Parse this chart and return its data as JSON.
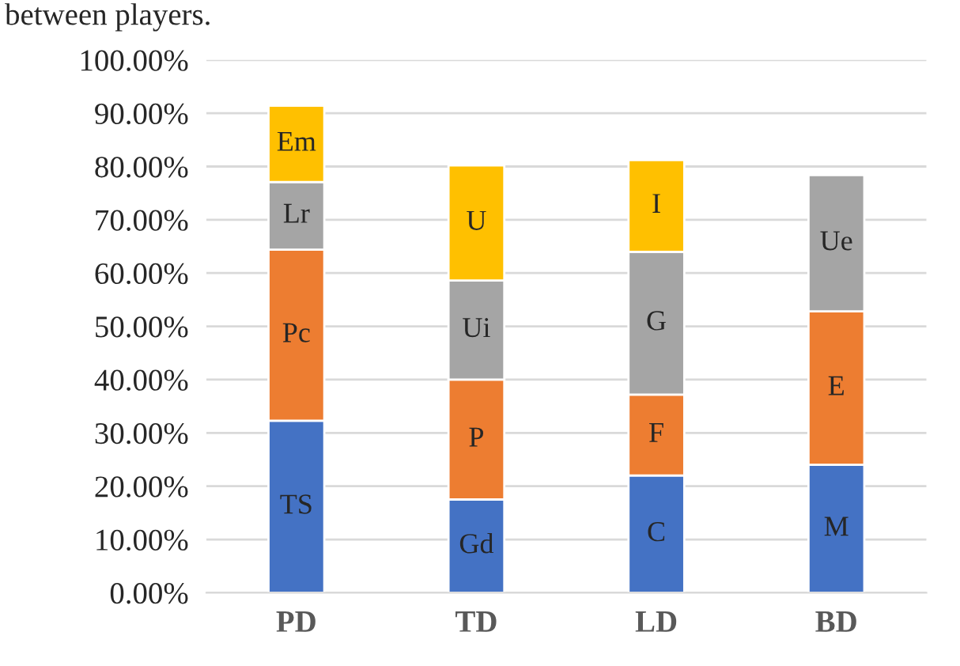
{
  "chart_data": {
    "type": "bar",
    "stacked": true,
    "categories": [
      "PD",
      "TD",
      "LD",
      "BD"
    ],
    "series": [
      {
        "color": "#4472c4",
        "values": [
          32.3,
          17.5,
          22.0,
          24.0
        ],
        "value_labels": [
          "TS",
          "Gd",
          "C",
          "M"
        ]
      },
      {
        "color": "#ed7d31",
        "values": [
          32.1,
          22.5,
          15.2,
          28.8
        ],
        "value_labels": [
          "Pc",
          "P",
          "F",
          "E"
        ]
      },
      {
        "color": "#a5a5a5",
        "values": [
          12.7,
          18.6,
          26.8,
          25.6
        ],
        "value_labels": [
          "Lr",
          "Ui",
          "G",
          "Ue"
        ]
      },
      {
        "color": "#ffc000",
        "values": [
          14.3,
          21.6,
          17.2,
          null
        ],
        "value_labels": [
          "Em",
          "U",
          "I",
          null
        ]
      }
    ],
    "ylim": [
      0,
      100
    ],
    "yticks": [
      {
        "value": 0,
        "label": "0.00%"
      },
      {
        "value": 10,
        "label": "10.00%"
      },
      {
        "value": 20,
        "label": "20.00%"
      },
      {
        "value": 30,
        "label": "30.00%"
      },
      {
        "value": 40,
        "label": "40.00%"
      },
      {
        "value": 50,
        "label": "50.00%"
      },
      {
        "value": 60,
        "label": "60.00%"
      },
      {
        "value": 70,
        "label": "70.00%"
      },
      {
        "value": 80,
        "label": "80.00%"
      },
      {
        "value": 90,
        "label": "90.00%"
      },
      {
        "value": 100,
        "label": "100.00%"
      }
    ],
    "grid": "y",
    "annotations": [
      "between players."
    ]
  }
}
